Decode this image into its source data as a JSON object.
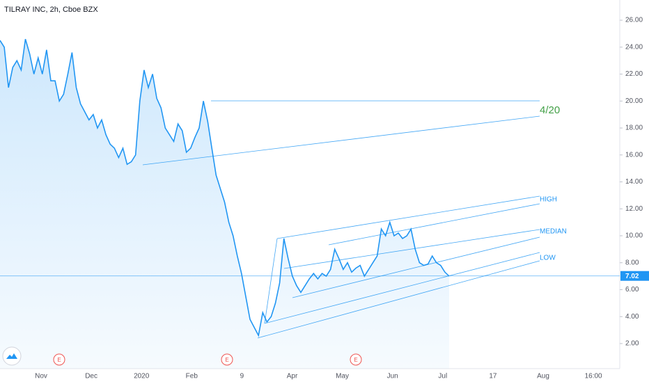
{
  "chart_data": {
    "type": "line",
    "title": "TILRAY INC, 2h, Cboe BZX",
    "xticks": [
      "Nov",
      "Dec",
      "2020",
      "Feb",
      "9",
      "Apr",
      "May",
      "Jun",
      "Jul",
      "17",
      "Aug",
      "16:00"
    ],
    "ylim": [
      0.14,
      27.5
    ],
    "yticks": [
      {
        "value": 2,
        "label": "2.00"
      },
      {
        "value": 4,
        "label": "4.00"
      },
      {
        "value": 6,
        "label": "6.00"
      },
      {
        "value": 8,
        "label": "8.00"
      },
      {
        "value": 10,
        "label": "10.00"
      },
      {
        "value": 12,
        "label": "12.00"
      },
      {
        "value": 14,
        "label": "14.00"
      },
      {
        "value": 16,
        "label": "16.00"
      },
      {
        "value": 18,
        "label": "18.00"
      },
      {
        "value": 20,
        "label": "20.00"
      },
      {
        "value": 22,
        "label": "22.00"
      },
      {
        "value": 24,
        "label": "24.00"
      },
      {
        "value": 26,
        "label": "26.00"
      }
    ],
    "series": [
      {
        "name": "TILRAY INC",
        "color": "#2196f3",
        "values": [
          24.5,
          24.0,
          21.0,
          22.5,
          23.0,
          22.3,
          24.6,
          23.5,
          22.0,
          23.2,
          22.0,
          23.8,
          21.5,
          21.5,
          20.0,
          20.5,
          22.0,
          23.6,
          21.0,
          19.8,
          19.2,
          18.6,
          19.0,
          18.0,
          18.6,
          17.5,
          16.8,
          16.5,
          15.8,
          16.5,
          15.3,
          15.5,
          16.0,
          20.0,
          22.3,
          21.0,
          22.0,
          20.2,
          19.5,
          18.0,
          17.5,
          17.0,
          18.3,
          17.8,
          16.2,
          16.5,
          17.3,
          18.0,
          20.0,
          18.5,
          16.5,
          14.5,
          13.5,
          12.5,
          11.0,
          10.0,
          8.5,
          7.2,
          5.5,
          3.8,
          3.2,
          2.6,
          4.3,
          3.6,
          4.0,
          5.0,
          6.5,
          9.8,
          8.3,
          7.0,
          6.3,
          5.8,
          6.3,
          6.8,
          7.2,
          6.8,
          7.2,
          7.0,
          7.5,
          9.0,
          8.3,
          7.5,
          8.0,
          7.3,
          7.6,
          7.8,
          7.0,
          7.5,
          8.0,
          8.5,
          10.5,
          10.0,
          11.0,
          10.0,
          10.2,
          9.8,
          10.0,
          10.5,
          9.0,
          8.0,
          7.8,
          7.9,
          8.5,
          8.0,
          7.8,
          7.3,
          7.0
        ]
      }
    ],
    "last_price": 7.02,
    "annotations": [
      "4/20",
      "HIGH",
      "MEDIAN",
      "LOW"
    ],
    "earnings_markers": [
      "E",
      "E",
      "E"
    ]
  }
}
